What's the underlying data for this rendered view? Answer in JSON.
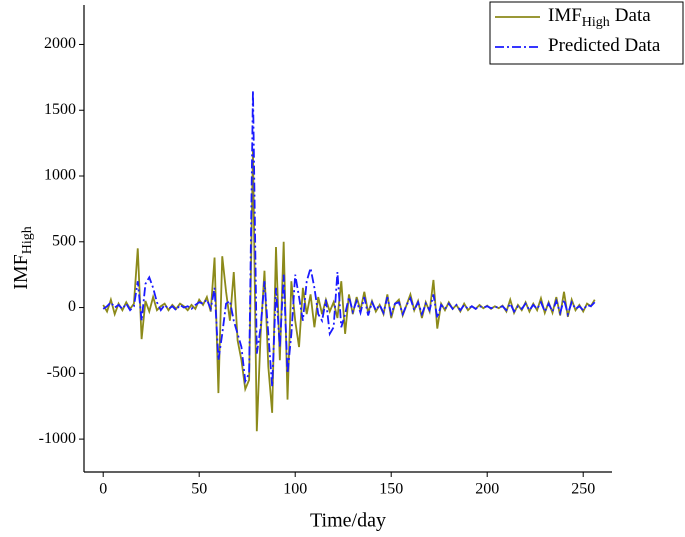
{
  "chart_data": {
    "type": "line",
    "x_label": "Time/day",
    "y_label": [
      "IMF",
      "High"
    ],
    "x": [
      0,
      2,
      4,
      6,
      8,
      10,
      12,
      14,
      16,
      18,
      20,
      22,
      24,
      26,
      28,
      30,
      32,
      34,
      36,
      38,
      40,
      42,
      44,
      46,
      48,
      50,
      52,
      54,
      56,
      58,
      60,
      62,
      64,
      66,
      68,
      70,
      72,
      74,
      76,
      78,
      80,
      82,
      84,
      86,
      88,
      90,
      92,
      94,
      96,
      98,
      100,
      102,
      104,
      106,
      108,
      110,
      112,
      114,
      116,
      118,
      120,
      122,
      124,
      126,
      128,
      130,
      132,
      134,
      136,
      138,
      140,
      142,
      144,
      146,
      148,
      150,
      152,
      154,
      156,
      158,
      160,
      162,
      164,
      166,
      168,
      170,
      172,
      174,
      176,
      178,
      180,
      182,
      184,
      186,
      188,
      190,
      192,
      194,
      196,
      198,
      200,
      202,
      204,
      206,
      208,
      210,
      212,
      214,
      216,
      218,
      220,
      222,
      224,
      226,
      228,
      230,
      232,
      234,
      236,
      238,
      240,
      242,
      244,
      246,
      248,
      250,
      252,
      254,
      256
    ],
    "series": [
      {
        "name": [
          "IMF",
          "High",
          "Data"
        ],
        "color": "#8c8a1a",
        "dash": "solid",
        "values": [
          20,
          -30,
          60,
          -50,
          30,
          -20,
          40,
          -10,
          30,
          450,
          -240,
          50,
          -30,
          80,
          -20,
          10,
          30,
          -20,
          20,
          -10,
          30,
          10,
          -20,
          20,
          -10,
          60,
          20,
          80,
          -30,
          380,
          -650,
          390,
          120,
          -100,
          270,
          -250,
          -400,
          -620,
          -550,
          1200,
          -940,
          -200,
          280,
          -450,
          -800,
          460,
          -400,
          500,
          -700,
          200,
          -100,
          -300,
          150,
          -50,
          100,
          -150,
          80,
          -50,
          60,
          -30,
          40,
          -80,
          200,
          -200,
          100,
          -50,
          80,
          -20,
          120,
          -40,
          50,
          -30,
          20,
          -50,
          100,
          -80,
          30,
          60,
          -60,
          20,
          100,
          -20,
          50,
          -80,
          40,
          -30,
          210,
          -160,
          30,
          -20,
          40,
          -10,
          20,
          -30,
          30,
          -20,
          10,
          -10,
          20,
          -5,
          15,
          -10,
          10,
          -5,
          15,
          -30,
          60,
          -40,
          20,
          -20,
          40,
          -30,
          30,
          -20,
          70,
          -40,
          40,
          -40,
          80,
          -60,
          120,
          -70,
          60,
          -20,
          20,
          -30,
          30,
          10,
          60
        ]
      },
      {
        "name": [
          "Predicted Data"
        ],
        "color": "#1a1aff",
        "dash": "dashdot",
        "values": [
          -10,
          10,
          40,
          0,
          20,
          -10,
          30,
          -20,
          10,
          200,
          -100,
          180,
          230,
          150,
          40,
          -20,
          20,
          -10,
          10,
          -20,
          20,
          0,
          10,
          -10,
          20,
          40,
          30,
          60,
          -10,
          150,
          -400,
          -200,
          30,
          50,
          -100,
          -200,
          -300,
          -560,
          -500,
          1650,
          -350,
          -150,
          200,
          -200,
          -600,
          150,
          -300,
          250,
          -500,
          -200,
          250,
          80,
          -100,
          200,
          300,
          150,
          -50,
          -100,
          60,
          -200,
          -150,
          270,
          -150,
          -50,
          80,
          -30,
          50,
          -40,
          80,
          -60,
          40,
          -20,
          20,
          -40,
          80,
          -50,
          30,
          40,
          -50,
          20,
          70,
          -20,
          40,
          -50,
          30,
          -20,
          100,
          -80,
          20,
          -10,
          30,
          -10,
          20,
          -20,
          20,
          -10,
          10,
          -10,
          10,
          0,
          10,
          -5,
          5,
          0,
          10,
          -20,
          30,
          -30,
          10,
          -10,
          30,
          -20,
          20,
          -10,
          40,
          -30,
          30,
          -30,
          50,
          -40,
          60,
          -50,
          40,
          -10,
          10,
          -20,
          20,
          10,
          40
        ]
      }
    ],
    "xlim": [
      -10,
      265
    ],
    "xticks": [
      0,
      50,
      100,
      150,
      200,
      250
    ],
    "ylim": [
      -1250,
      2300
    ],
    "yticks": [
      -1000,
      -500,
      0,
      500,
      1000,
      1500,
      2000
    ],
    "grid": false,
    "legend": "upper right"
  }
}
